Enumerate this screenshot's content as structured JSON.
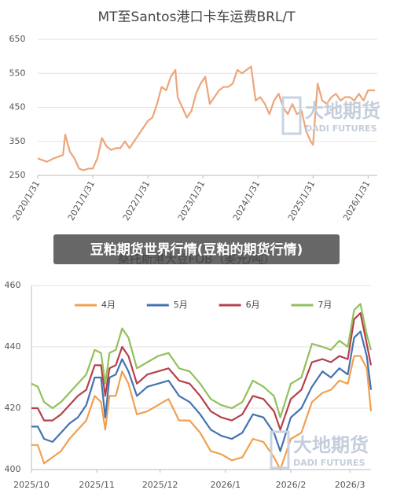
{
  "overlay_title": "豆粕期货世界行情(豆粕的期货行情)",
  "watermarks": [
    {
      "name": "大地期货",
      "sub": "DADI FUTURES"
    },
    {
      "name": "大地期货",
      "sub": "DADI FUTURES"
    }
  ],
  "chart_data": [
    {
      "type": "line",
      "title": "MT至Santos港口卡车运费BRL/T",
      "color": "#eda57a",
      "x": [
        0,
        1,
        2,
        3.5,
        4.5,
        5.5,
        6,
        7,
        8,
        9,
        10,
        11,
        12,
        13,
        14,
        15,
        16,
        17,
        18,
        19,
        20,
        21,
        22,
        23,
        24,
        25,
        26,
        27,
        28,
        29,
        30,
        30.5,
        31.5,
        32.5,
        33.5,
        34.5,
        35.5,
        36.5,
        37.5,
        38.5,
        39.5,
        40.5,
        41.5,
        42.5,
        43.5,
        44.5,
        45.5,
        46.5,
        47.5,
        48.5,
        49.5,
        50.5,
        51.5,
        52.5,
        53.5,
        54.5,
        55.5,
        56.5,
        57.5,
        58.5,
        59.5,
        60,
        61,
        62,
        63,
        64,
        65,
        66,
        67,
        68,
        69,
        70,
        71,
        72,
        73.5
      ],
      "values": [
        300,
        295,
        290,
        300,
        305,
        310,
        370,
        320,
        300,
        270,
        265,
        270,
        270,
        300,
        360,
        335,
        325,
        330,
        330,
        350,
        330,
        350,
        370,
        390,
        410,
        420,
        460,
        510,
        500,
        540,
        560,
        480,
        450,
        420,
        440,
        490,
        520,
        540,
        460,
        480,
        500,
        510,
        510,
        520,
        560,
        550,
        560,
        570,
        470,
        480,
        460,
        430,
        470,
        490,
        450,
        430,
        460,
        430,
        440,
        380,
        350,
        340,
        520,
        470,
        460,
        480,
        490,
        470,
        480,
        480,
        470,
        490,
        470,
        500,
        500
      ],
      "xlim": [
        0,
        74
      ],
      "xticks": [
        {
          "value": 0,
          "label": "2020/1/31"
        },
        {
          "value": 12,
          "label": "2021/1/31"
        },
        {
          "value": 24,
          "label": "2022/1/31"
        },
        {
          "value": 36,
          "label": "2023/1/31"
        },
        {
          "value": 48,
          "label": "2024/1/31"
        },
        {
          "value": 60,
          "label": "2025/1/31"
        },
        {
          "value": 72,
          "label": "2026/1/31"
        }
      ],
      "ylim": [
        250,
        650
      ],
      "yticks": [
        250,
        350,
        450,
        550,
        650
      ],
      "grid": true
    },
    {
      "type": "line",
      "title": "桑托斯港大豆FOB（美元/吨）",
      "x": [
        0,
        3,
        6,
        10,
        14,
        18,
        22,
        26,
        30,
        33,
        35,
        37,
        40,
        43,
        46,
        50,
        55,
        60,
        65,
        70,
        75,
        80,
        85,
        90,
        95,
        100,
        105,
        110,
        115,
        118,
        123,
        128,
        133,
        138,
        142,
        146,
        150,
        153,
        156,
        159,
        161
      ],
      "series": [
        {
          "name": "4月",
          "color": "#f0a050",
          "values": [
            408,
            408,
            402,
            404,
            406,
            410,
            413,
            416,
            424,
            422,
            413,
            424,
            424,
            432,
            428,
            418,
            419,
            421,
            423,
            416,
            416,
            412,
            406,
            405,
            403,
            404,
            410,
            409,
            404,
            400,
            410,
            412,
            422,
            425,
            426,
            429,
            428,
            437,
            437,
            433,
            419
          ]
        },
        {
          "name": "5月",
          "color": "#4472b0",
          "values": [
            414,
            414,
            410,
            409,
            412,
            415,
            417,
            421,
            430,
            430,
            417,
            430,
            431,
            436,
            432,
            424,
            427,
            428,
            429,
            424,
            422,
            418,
            413,
            411,
            410,
            412,
            418,
            417,
            412,
            406,
            417,
            420,
            427,
            432,
            430,
            433,
            431,
            443,
            445,
            437,
            426
          ]
        },
        {
          "name": "6月",
          "color": "#b5404a",
          "values": [
            420,
            420,
            416,
            416,
            418,
            421,
            424,
            426,
            434,
            434,
            424,
            433,
            434,
            440,
            437,
            428,
            431,
            432,
            433,
            429,
            428,
            424,
            419,
            417,
            416,
            418,
            424,
            423,
            419,
            413,
            423,
            426,
            435,
            436,
            435,
            437,
            436,
            449,
            451,
            441,
            434
          ]
        },
        {
          "name": "7月",
          "color": "#92c05a",
          "values": [
            428,
            427,
            422,
            420,
            422,
            425,
            428,
            431,
            439,
            438,
            428,
            438,
            439,
            446,
            443,
            433,
            435,
            437,
            438,
            433,
            432,
            428,
            423,
            421,
            420,
            422,
            429,
            427,
            424,
            417,
            428,
            430,
            441,
            440,
            439,
            442,
            440,
            452,
            454,
            444,
            439
          ]
        }
      ],
      "xlim": [
        0,
        161
      ],
      "xticks": [
        {
          "value": 0,
          "label": "2025/10"
        },
        {
          "value": 31,
          "label": "2025/11"
        },
        {
          "value": 61,
          "label": "2025/12"
        },
        {
          "value": 92,
          "label": "2026/1"
        },
        {
          "value": 123,
          "label": "2026/2"
        },
        {
          "value": 151,
          "label": "2026/3"
        }
      ],
      "ylim": [
        400,
        460
      ],
      "yticks": [
        400,
        420,
        440,
        460
      ],
      "grid": true,
      "legend": "top"
    }
  ]
}
